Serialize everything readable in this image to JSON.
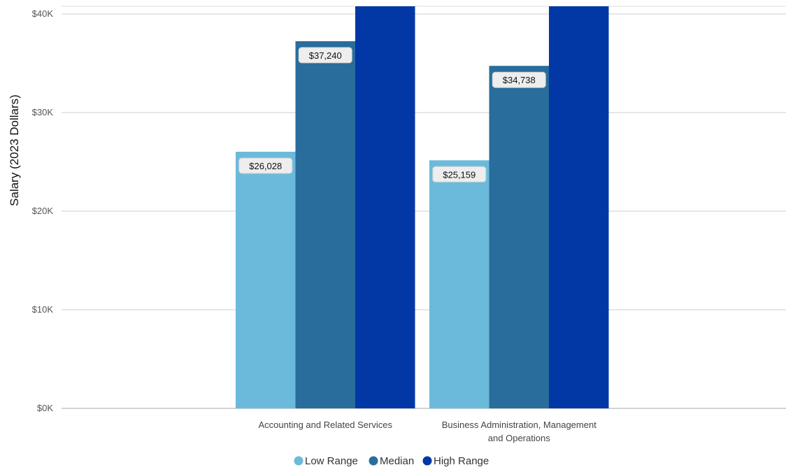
{
  "chart_data": {
    "type": "bar",
    "ylabel": "Salary (2023 Dollars)",
    "ylim": [
      0,
      40000
    ],
    "yticks": [
      "$0K",
      "$10K",
      "$20K",
      "$30K",
      "$40K"
    ],
    "categories": [
      [
        "Accounting and Related Services"
      ],
      [
        "Business Administration, Management",
        "and Operations"
      ]
    ],
    "series": [
      {
        "name": "Low Range",
        "color": "#6cbadb",
        "values": [
          26028,
          25159
        ],
        "labels": [
          "$26,028",
          "$25,159"
        ]
      },
      {
        "name": "Median",
        "color": "#286d9b",
        "values": [
          37240,
          34738
        ],
        "labels": [
          "$37,240",
          "$34,738"
        ]
      },
      {
        "name": "High Range",
        "color": "#0237a6",
        "values": [
          41000,
          41000
        ],
        "labels": [
          "",
          ""
        ]
      }
    ],
    "grid": true,
    "legend": "bottom"
  }
}
